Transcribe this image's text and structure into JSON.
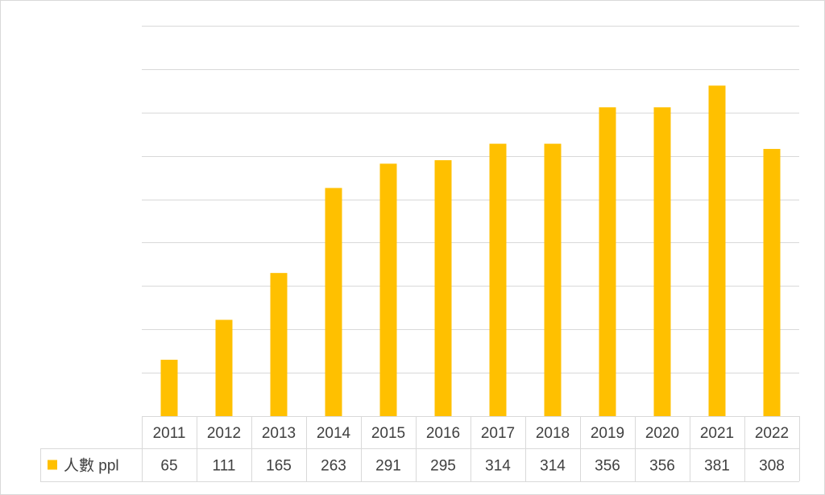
{
  "chart_data": {
    "type": "bar",
    "categories": [
      "2011",
      "2012",
      "2013",
      "2014",
      "2015",
      "2016",
      "2017",
      "2018",
      "2019",
      "2020",
      "2021",
      "2022"
    ],
    "series": [
      {
        "name": "人數 ppl",
        "values": [
          65,
          111,
          165,
          263,
          291,
          295,
          314,
          314,
          356,
          356,
          381,
          308
        ]
      }
    ],
    "ylim": [
      0,
      450
    ],
    "grid": true,
    "legend": "data-table-left",
    "data_table": true,
    "colors": {
      "bar": "#FFC000",
      "grid": "#D9D9D9",
      "table_border": "#D9D9D9",
      "text": "#404040",
      "frame": "#D9D9D9"
    }
  }
}
